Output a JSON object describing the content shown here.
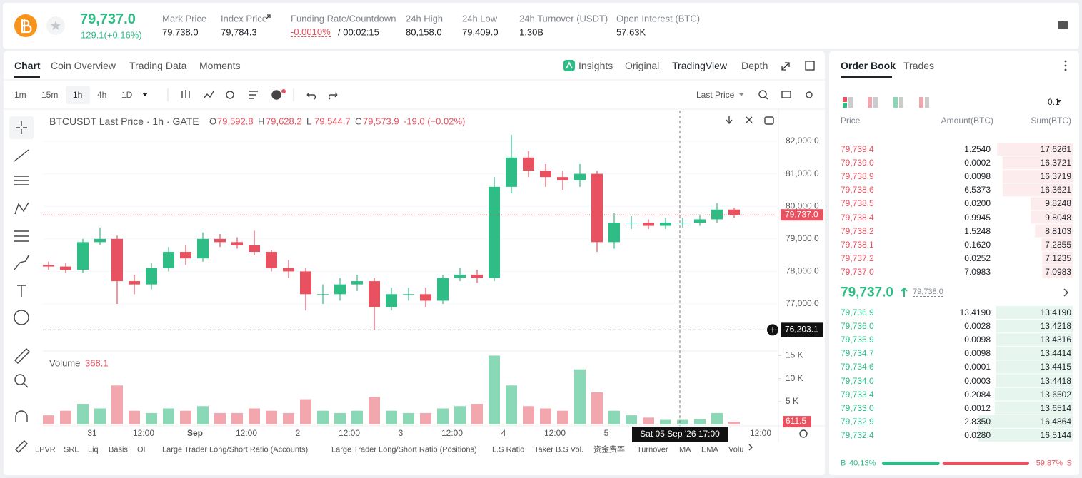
{
  "header": {
    "price": "79,737.0",
    "change": "129.1(+0.16%)",
    "stats": [
      {
        "label": "Mark Price",
        "value": "79,738.0"
      },
      {
        "label": "Index Price",
        "value": "79,784.3"
      },
      {
        "label": "Funding Rate/Countdown",
        "value": "-0.0010%",
        "extra": "/ 00:02:15"
      },
      {
        "label": "24h High",
        "value": "80,158.0"
      },
      {
        "label": "24h Low",
        "value": "79,409.0"
      },
      {
        "label": "24h Turnover (USDT)",
        "value": "1.30B"
      },
      {
        "label": "Open Interest (BTC)",
        "value": "57.63K"
      }
    ]
  },
  "chart_tabs": [
    "Chart",
    "Coin Overview",
    "Trading Data",
    "Moments"
  ],
  "view_tabs": [
    "Insights",
    "Original",
    "TradingView",
    "Depth"
  ],
  "intervals": [
    "1m",
    "15m",
    "1h",
    "4h",
    "1D"
  ],
  "price_source": "Last Price",
  "chart_data": {
    "type": "candlestick",
    "title": "BTCUSDT Last Price · 1h · GATE",
    "legend": [
      {
        "label": "O",
        "value": "79,592.8"
      },
      {
        "label": "H",
        "value": "79,628.2"
      },
      {
        "label": "L",
        "value": "79,544.7"
      },
      {
        "label": "C",
        "value": "79,573.9"
      }
    ],
    "legend_change": "-19.0 (−0.02%)",
    "x_labels": [
      "31",
      "12:00",
      "Sep",
      "12:00",
      "2",
      "12:00",
      "3",
      "12:00",
      "4",
      "12:00",
      "5",
      null,
      null,
      "12:00"
    ],
    "open": [
      78200,
      78150,
      78050,
      78900,
      79000,
      77700,
      77600,
      78100,
      78600,
      78400,
      79000,
      78900,
      78800,
      78600,
      78100,
      78000,
      77300,
      77300,
      77600,
      77700,
      76900,
      77300,
      77300,
      77100,
      77800,
      77900,
      77800,
      80600,
      81500,
      81100,
      80900,
      80800,
      81000,
      78900,
      79500,
      79500,
      79400,
      79500,
      79500,
      79600,
      79900
    ],
    "high": [
      78300,
      78250,
      79000,
      79350,
      79100,
      77900,
      78250,
      78750,
      78800,
      79200,
      79150,
      79050,
      79250,
      78650,
      78350,
      78100,
      77600,
      77800,
      77900,
      77800,
      77500,
      77500,
      77500,
      77900,
      78100,
      78050,
      80900,
      82200,
      81700,
      81300,
      81100,
      81300,
      81100,
      79800,
      79700,
      79600,
      79650,
      79650,
      79750,
      80100,
      79950
    ],
    "low": [
      78050,
      77950,
      77950,
      78800,
      77000,
      77300,
      77450,
      78000,
      78200,
      78300,
      78750,
      78700,
      78500,
      78000,
      77800,
      76800,
      77000,
      77100,
      77400,
      76200,
      76800,
      77100,
      76900,
      77000,
      77700,
      77650,
      77700,
      80400,
      80900,
      80600,
      80500,
      80600,
      78600,
      78700,
      79300,
      79300,
      79300,
      79350,
      79400,
      79500,
      79650
    ],
    "close": [
      78150,
      78050,
      78900,
      79000,
      77700,
      77600,
      78100,
      78600,
      78400,
      79000,
      78900,
      78800,
      78600,
      78100,
      78000,
      77300,
      77300,
      77600,
      77700,
      76900,
      77300,
      77300,
      77100,
      77800,
      77900,
      77800,
      80600,
      81500,
      81100,
      80900,
      80800,
      81000,
      78900,
      79500,
      79500,
      79400,
      79500,
      79500,
      79600,
      79900,
      79737
    ],
    "volume": [
      2000,
      3000,
      4500,
      3500,
      8500,
      3000,
      2500,
      3500,
      3000,
      4000,
      2500,
      2500,
      3500,
      3000,
      2500,
      5500,
      3000,
      2500,
      3000,
      6000,
      3000,
      2500,
      2500,
      3500,
      4000,
      4500,
      15000,
      8500,
      4000,
      3500,
      3000,
      12000,
      7000,
      3000,
      2000,
      1500,
      1000,
      1000,
      1200,
      2500,
      611.5
    ],
    "ylim": [
      75553,
      82943
    ],
    "yticks": [
      {
        "value": 77000,
        "label": "77,000.0"
      },
      {
        "value": 78000,
        "label": "78,000.0"
      },
      {
        "value": 79000,
        "label": "79,000.0"
      },
      {
        "value": 80000,
        "label": "80,000.0"
      },
      {
        "value": 81000,
        "label": "81,000.0"
      },
      {
        "value": 82000,
        "label": "82,000.0"
      }
    ],
    "volume_ylim": [
      0,
      16000
    ],
    "volume_yticks": [
      {
        "value": 5000,
        "label": "5 K"
      },
      {
        "value": 10000,
        "label": "10 K"
      },
      {
        "value": 15000,
        "label": "15 K"
      }
    ],
    "last_price": {
      "value": 79737.0,
      "label": "79,737.0"
    },
    "crosshair_price": {
      "value": 76203.1,
      "label": "76,203.1"
    },
    "crosshair_time": "Sat 05 Sep '26   17:00",
    "volume_title": "Volume",
    "volume_value": "368.1",
    "volume_last": {
      "value": 611.5,
      "label": "611.5"
    },
    "up_color": "#2ebd85",
    "down_color": "#e8515f",
    "up_volume_color": "#8ad8b6",
    "down_volume_color": "#f2a6ae"
  },
  "indicators": [
    "LPVR",
    "SRL",
    "Liq",
    "Basis",
    "OI",
    "Large Trader Long/Short Ratio (Accounts)",
    "Large Trader Long/Short Ratio (Positions)",
    "L.S Ratio",
    "Taker B.S Vol.",
    "资金费率",
    "Turnover",
    "MA",
    "EMA",
    "Volu"
  ],
  "order_book": {
    "tabs": [
      "Order Book",
      "Trades"
    ],
    "precision": "0.1",
    "columns": [
      "Price",
      "Amount(BTC)",
      "Sum(BTC)"
    ],
    "asks": [
      [
        "79,739.4",
        "1.2540",
        "17.6261"
      ],
      [
        "79,739.0",
        "0.0002",
        "16.3721"
      ],
      [
        "79,738.9",
        "0.0098",
        "16.3719"
      ],
      [
        "79,738.6",
        "6.5373",
        "16.3621"
      ],
      [
        "79,738.5",
        "0.0200",
        "9.8248"
      ],
      [
        "79,738.4",
        "0.9945",
        "9.8048"
      ],
      [
        "79,738.2",
        "1.5248",
        "8.8103"
      ],
      [
        "79,738.1",
        "0.1620",
        "7.2855"
      ],
      [
        "79,737.2",
        "0.0252",
        "7.1235"
      ],
      [
        "79,737.0",
        "7.0983",
        "7.0983"
      ]
    ],
    "bids": [
      [
        "79,736.9",
        "13.4190",
        "13.4190"
      ],
      [
        "79,736.0",
        "0.0028",
        "13.4218"
      ],
      [
        "79,735.9",
        "0.0098",
        "13.4316"
      ],
      [
        "79,734.7",
        "0.0098",
        "13.4414"
      ],
      [
        "79,734.6",
        "0.0001",
        "13.4415"
      ],
      [
        "79,734.0",
        "0.0003",
        "13.4418"
      ],
      [
        "79,733.4",
        "0.2084",
        "13.6502"
      ],
      [
        "79,733.0",
        "0.0012",
        "13.6514"
      ],
      [
        "79,732.9",
        "2.8350",
        "16.4864"
      ],
      [
        "79,732.4",
        "0.0280",
        "16.5144"
      ]
    ],
    "mid_price": "79,737.0",
    "mark_price": "79,738.0",
    "buy_label": "B",
    "buy_ratio": {
      "value": 40.13,
      "label": "40.13%"
    },
    "sell_ratio": {
      "value": 59.87,
      "label": "59.87%"
    },
    "sell_label": "S"
  }
}
